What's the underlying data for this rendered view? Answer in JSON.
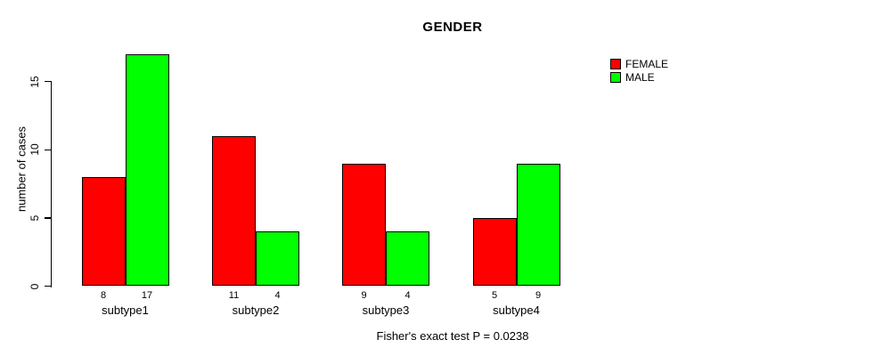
{
  "chart_data": {
    "type": "bar",
    "title": "GENDER",
    "ylabel": "number of cases",
    "xlabel": "",
    "caption": "Fisher's exact test P = 0.0238",
    "categories": [
      "subtype1",
      "subtype2",
      "subtype3",
      "subtype4"
    ],
    "series": [
      {
        "name": "FEMALE",
        "color": "#FF0000",
        "values": [
          8,
          11,
          9,
          5
        ]
      },
      {
        "name": "MALE",
        "color": "#00FF00",
        "values": [
          17,
          4,
          4,
          9
        ]
      }
    ],
    "bar_value_labels": [
      [
        "8",
        "17"
      ],
      [
        "11",
        "4"
      ],
      [
        "9",
        "4"
      ],
      [
        "5",
        "9"
      ]
    ],
    "y_ticks": [
      "0",
      "5",
      "10",
      "15"
    ],
    "y_tick_values": [
      0,
      5,
      10,
      15
    ],
    "ylim": [
      0,
      17
    ],
    "grid": false,
    "legend_position": "top-right",
    "bar_border_color": "#000000",
    "background_color": "#FFFFFF"
  }
}
